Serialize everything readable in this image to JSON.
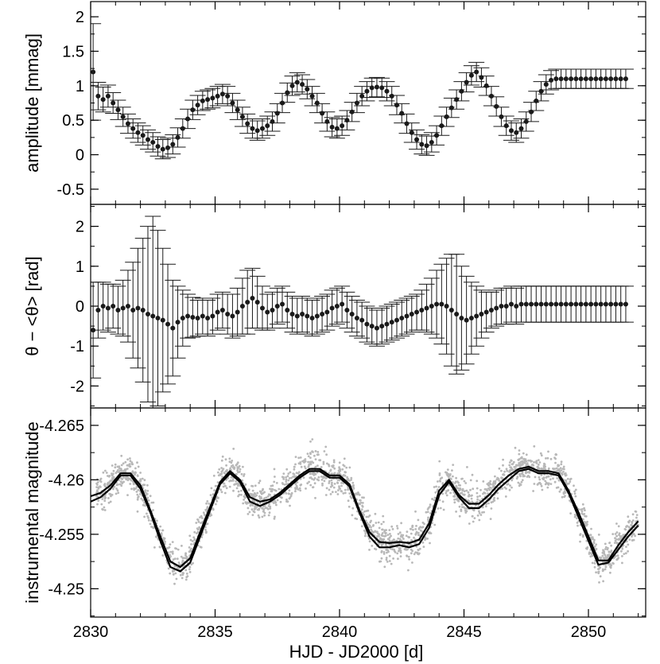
{
  "chart_data": [
    {
      "type": "scatter",
      "panel": "top",
      "ylabel": "amplitude [mmag]",
      "xlim": [
        2830,
        2852.3
      ],
      "ylim": [
        -0.72,
        2.22
      ],
      "xticks": [
        2830,
        2835,
        2840,
        2845,
        2850
      ],
      "yticks": [
        -0.5,
        0,
        0.5,
        1,
        1.5,
        2
      ],
      "ytick_labels": [
        "-0.5",
        "0",
        "0.5",
        "1",
        "1.5",
        "2"
      ],
      "error_bars": true,
      "grid": false,
      "series": [
        {
          "style": "points-with-errorbars",
          "color": "#1a1a1a",
          "x": [
            2830.1,
            2830.3,
            2830.5,
            2830.7,
            2830.9,
            2831.1,
            2831.3,
            2831.5,
            2831.7,
            2831.9,
            2832.1,
            2832.3,
            2832.5,
            2832.7,
            2832.9,
            2833.1,
            2833.3,
            2833.5,
            2833.7,
            2833.9,
            2834.1,
            2834.3,
            2834.5,
            2834.7,
            2834.9,
            2835.1,
            2835.3,
            2835.5,
            2835.7,
            2835.9,
            2836.1,
            2836.3,
            2836.5,
            2836.7,
            2836.9,
            2837.1,
            2837.3,
            2837.5,
            2837.7,
            2837.9,
            2838.1,
            2838.3,
            2838.5,
            2838.7,
            2838.9,
            2839.1,
            2839.3,
            2839.5,
            2839.7,
            2839.9,
            2840.1,
            2840.3,
            2840.5,
            2840.7,
            2840.9,
            2841.1,
            2841.3,
            2841.5,
            2841.7,
            2841.9,
            2842.1,
            2842.3,
            2842.5,
            2842.7,
            2842.9,
            2843.1,
            2843.3,
            2843.5,
            2843.7,
            2843.9,
            2844.1,
            2844.3,
            2844.5,
            2844.7,
            2844.9,
            2845.1,
            2845.3,
            2845.5,
            2845.7,
            2845.9,
            2846.1,
            2846.3,
            2846.5,
            2846.7,
            2846.9,
            2847.1,
            2847.3,
            2847.5,
            2847.7,
            2847.9,
            2848.1,
            2848.3,
            2848.5,
            2848.7,
            2848.9,
            2849.1,
            2849.3,
            2849.5,
            2849.7,
            2849.9,
            2850.1,
            2850.3,
            2850.5,
            2850.7,
            2850.9,
            2851.1,
            2851.3,
            2851.5
          ],
          "y": [
            1.2,
            0.85,
            0.8,
            0.85,
            0.75,
            0.65,
            0.55,
            0.45,
            0.38,
            0.32,
            0.28,
            0.22,
            0.18,
            0.12,
            0.08,
            0.1,
            0.15,
            0.25,
            0.38,
            0.52,
            0.65,
            0.72,
            0.78,
            0.8,
            0.82,
            0.85,
            0.88,
            0.85,
            0.75,
            0.65,
            0.55,
            0.45,
            0.38,
            0.35,
            0.38,
            0.42,
            0.48,
            0.6,
            0.75,
            0.9,
            1.0,
            1.05,
            1.02,
            0.95,
            0.85,
            0.75,
            0.6,
            0.48,
            0.4,
            0.38,
            0.42,
            0.5,
            0.62,
            0.75,
            0.85,
            0.92,
            0.97,
            0.98,
            0.97,
            0.92,
            0.85,
            0.72,
            0.6,
            0.45,
            0.32,
            0.22,
            0.15,
            0.13,
            0.18,
            0.28,
            0.42,
            0.55,
            0.68,
            0.8,
            0.92,
            1.05,
            1.15,
            1.2,
            1.12,
            1.0,
            0.85,
            0.7,
            0.55,
            0.42,
            0.35,
            0.32,
            0.38,
            0.48,
            0.62,
            0.78,
            0.92,
            1.02,
            1.08,
            1.1,
            1.1,
            1.1,
            1.1,
            1.1,
            1.1,
            1.1,
            1.1,
            1.1,
            1.1,
            1.1,
            1.1,
            1.1,
            1.1,
            1.1
          ],
          "err": [
            0.7,
            0.2,
            0.18,
            0.16,
            0.15,
            0.14,
            0.14,
            0.14,
            0.14,
            0.14,
            0.14,
            0.14,
            0.14,
            0.14,
            0.14,
            0.14,
            0.14,
            0.14,
            0.14,
            0.14,
            0.14,
            0.14,
            0.14,
            0.14,
            0.14,
            0.14,
            0.14,
            0.14,
            0.14,
            0.14,
            0.14,
            0.14,
            0.14,
            0.14,
            0.14,
            0.14,
            0.14,
            0.14,
            0.14,
            0.14,
            0.14,
            0.14,
            0.14,
            0.14,
            0.14,
            0.14,
            0.14,
            0.14,
            0.14,
            0.14,
            0.14,
            0.14,
            0.14,
            0.14,
            0.14,
            0.14,
            0.14,
            0.14,
            0.14,
            0.14,
            0.14,
            0.14,
            0.14,
            0.14,
            0.14,
            0.14,
            0.14,
            0.14,
            0.14,
            0.14,
            0.14,
            0.14,
            0.14,
            0.14,
            0.14,
            0.14,
            0.14,
            0.14,
            0.14,
            0.14,
            0.14,
            0.14,
            0.14,
            0.14,
            0.14,
            0.14,
            0.14,
            0.14,
            0.14,
            0.14,
            0.14,
            0.14,
            0.14,
            0.14,
            0.14,
            0.14,
            0.14,
            0.14,
            0.14,
            0.14,
            0.14,
            0.14,
            0.14,
            0.14,
            0.14,
            0.14,
            0.14,
            0.14
          ]
        }
      ]
    },
    {
      "type": "scatter",
      "panel": "middle",
      "ylabel": "θ − <θ> [rad]",
      "xlim": [
        2830,
        2852.3
      ],
      "ylim": [
        -2.55,
        2.55
      ],
      "xticks": [
        2830,
        2835,
        2840,
        2845,
        2850
      ],
      "yticks": [
        -2,
        -1,
        0,
        1,
        2
      ],
      "ytick_labels": [
        "-2",
        "-1",
        "0",
        "1",
        "2"
      ],
      "error_bars": true,
      "grid": false,
      "series": [
        {
          "style": "points-with-errorbars",
          "color": "#1a1a1a",
          "x": [
            2830.1,
            2830.3,
            2830.5,
            2830.7,
            2830.9,
            2831.1,
            2831.3,
            2831.5,
            2831.7,
            2831.9,
            2832.1,
            2832.3,
            2832.5,
            2832.7,
            2832.9,
            2833.1,
            2833.3,
            2833.5,
            2833.7,
            2833.9,
            2834.1,
            2834.3,
            2834.5,
            2834.7,
            2834.9,
            2835.1,
            2835.3,
            2835.5,
            2835.7,
            2835.9,
            2836.1,
            2836.3,
            2836.5,
            2836.7,
            2836.9,
            2837.1,
            2837.3,
            2837.5,
            2837.7,
            2837.9,
            2838.1,
            2838.3,
            2838.5,
            2838.7,
            2838.9,
            2839.1,
            2839.3,
            2839.5,
            2839.7,
            2839.9,
            2840.1,
            2840.3,
            2840.5,
            2840.7,
            2840.9,
            2841.1,
            2841.3,
            2841.5,
            2841.7,
            2841.9,
            2842.1,
            2842.3,
            2842.5,
            2842.7,
            2842.9,
            2843.1,
            2843.3,
            2843.5,
            2843.7,
            2843.9,
            2844.1,
            2844.3,
            2844.5,
            2844.7,
            2844.9,
            2845.1,
            2845.3,
            2845.5,
            2845.7,
            2845.9,
            2846.1,
            2846.3,
            2846.5,
            2846.7,
            2846.9,
            2847.1,
            2847.3,
            2847.5,
            2847.7,
            2847.9,
            2848.1,
            2848.3,
            2848.5,
            2848.7,
            2848.9,
            2849.1,
            2849.3,
            2849.5,
            2849.7,
            2849.9,
            2850.1,
            2850.3,
            2850.5,
            2850.7,
            2850.9,
            2851.1,
            2851.3,
            2851.5
          ],
          "y": [
            -0.6,
            -0.1,
            0.0,
            -0.05,
            0.0,
            -0.1,
            -0.05,
            0.0,
            -0.1,
            -0.05,
            -0.1,
            -0.2,
            -0.25,
            -0.3,
            -0.35,
            -0.45,
            -0.55,
            -0.4,
            -0.3,
            -0.25,
            -0.28,
            -0.3,
            -0.25,
            -0.3,
            -0.25,
            -0.15,
            -0.1,
            -0.2,
            -0.25,
            -0.15,
            0.0,
            0.1,
            0.2,
            0.1,
            -0.05,
            -0.15,
            -0.1,
            0.0,
            0.05,
            -0.1,
            -0.2,
            -0.25,
            -0.2,
            -0.25,
            -0.3,
            -0.25,
            -0.2,
            -0.15,
            -0.05,
            0.0,
            0.05,
            -0.1,
            -0.2,
            -0.3,
            -0.35,
            -0.45,
            -0.5,
            -0.55,
            -0.5,
            -0.45,
            -0.4,
            -0.35,
            -0.3,
            -0.25,
            -0.2,
            -0.15,
            -0.1,
            -0.05,
            0.0,
            0.05,
            0.05,
            0.0,
            -0.1,
            -0.2,
            -0.3,
            -0.35,
            -0.3,
            -0.25,
            -0.2,
            -0.15,
            -0.1,
            -0.05,
            0.0,
            0.0,
            0.05,
            0.0,
            0.05,
            0.05,
            0.05,
            0.05,
            0.05,
            0.05,
            0.05,
            0.05,
            0.05,
            0.05,
            0.05,
            0.05,
            0.05,
            0.05,
            0.05,
            0.05,
            0.05,
            0.05,
            0.05,
            0.05,
            0.05,
            0.05
          ],
          "err": [
            1.2,
            0.7,
            0.6,
            0.6,
            0.55,
            0.6,
            0.7,
            0.9,
            1.2,
            1.5,
            1.8,
            2.2,
            2.5,
            2.2,
            1.8,
            1.5,
            1.2,
            0.9,
            0.7,
            0.55,
            0.5,
            0.45,
            0.45,
            0.45,
            0.45,
            0.45,
            0.45,
            0.5,
            0.55,
            0.6,
            0.7,
            0.8,
            0.75,
            0.65,
            0.55,
            0.45,
            0.45,
            0.45,
            0.45,
            0.45,
            0.45,
            0.45,
            0.45,
            0.45,
            0.45,
            0.45,
            0.45,
            0.45,
            0.45,
            0.45,
            0.45,
            0.45,
            0.45,
            0.45,
            0.45,
            0.45,
            0.45,
            0.45,
            0.45,
            0.45,
            0.45,
            0.45,
            0.45,
            0.45,
            0.45,
            0.45,
            0.5,
            0.6,
            0.7,
            0.85,
            1.0,
            1.2,
            1.4,
            1.5,
            1.3,
            1.1,
            0.9,
            0.75,
            0.6,
            0.5,
            0.45,
            0.45,
            0.45,
            0.45,
            0.45,
            0.45,
            0.45,
            0.45,
            0.45,
            0.45,
            0.45,
            0.45,
            0.45,
            0.45,
            0.45,
            0.45,
            0.45,
            0.45,
            0.45,
            0.45,
            0.45,
            0.45,
            0.45,
            0.45,
            0.45,
            0.45,
            0.45,
            0.45
          ]
        }
      ]
    },
    {
      "type": "scatter",
      "panel": "bottom",
      "xlabel": "HJD - JD2000 [d]",
      "ylabel": "instrumental magnitude",
      "xlim": [
        2830,
        2852.3
      ],
      "ylim": [
        -4.2666,
        -4.2474
      ],
      "y_inverted": true,
      "xticks": [
        2830,
        2835,
        2840,
        2845,
        2850
      ],
      "xtick_labels": [
        "2830",
        "2835",
        "2840",
        "2845",
        "2850"
      ],
      "yticks": [
        -4.265,
        -4.26,
        -4.255,
        -4.25
      ],
      "ytick_labels": [
        "-4.265",
        "-4.26",
        "-4.255",
        "-4.25"
      ],
      "grid": false,
      "scatter_color": "#b8b8b8",
      "scatter_note": "dense photometric points scattered around the model curves",
      "scatter_sd": 0.0008,
      "series": [
        {
          "style": "line",
          "color": "#000000",
          "x": [
            2830,
            2830.4,
            2830.8,
            2831.2,
            2831.6,
            2832.0,
            2832.4,
            2832.8,
            2833.2,
            2833.6,
            2834.0,
            2834.4,
            2834.8,
            2835.2,
            2835.6,
            2836.0,
            2836.4,
            2836.8,
            2837.2,
            2837.6,
            2838.0,
            2838.4,
            2838.8,
            2839.2,
            2839.6,
            2840.0,
            2840.4,
            2840.8,
            2841.2,
            2841.6,
            2842.0,
            2842.4,
            2842.8,
            2843.2,
            2843.6,
            2844.0,
            2844.4,
            2844.8,
            2845.2,
            2845.6,
            2846.0,
            2846.4,
            2846.8,
            2847.2,
            2847.6,
            2848.0,
            2848.4,
            2848.8,
            2849.2,
            2849.6,
            2850.0,
            2850.4,
            2850.8,
            2851.2,
            2851.6,
            2852.0
          ],
          "y": [
            -4.2585,
            -4.2588,
            -4.2595,
            -4.2606,
            -4.2606,
            -4.2595,
            -4.2572,
            -4.2548,
            -4.2525,
            -4.252,
            -4.2528,
            -4.2552,
            -4.2575,
            -4.2598,
            -4.2608,
            -4.26,
            -4.2584,
            -4.258,
            -4.2582,
            -4.2588,
            -4.2596,
            -4.2604,
            -4.261,
            -4.261,
            -4.2604,
            -4.2604,
            -4.2596,
            -4.2572,
            -4.2552,
            -4.2543,
            -4.2542,
            -4.2543,
            -4.2542,
            -4.2545,
            -4.256,
            -4.259,
            -4.26,
            -4.2586,
            -4.2578,
            -4.2578,
            -4.2586,
            -4.2596,
            -4.2604,
            -4.261,
            -4.2612,
            -4.2608,
            -4.2608,
            -4.2606,
            -4.259,
            -4.257,
            -4.2548,
            -4.2526,
            -4.2526,
            -4.254,
            -4.2552,
            -4.2562
          ]
        },
        {
          "style": "line",
          "color": "#000000",
          "x": [
            2830,
            2830.4,
            2830.8,
            2831.2,
            2831.6,
            2832.0,
            2832.4,
            2832.8,
            2833.2,
            2833.6,
            2834.0,
            2834.4,
            2834.8,
            2835.2,
            2835.6,
            2836.0,
            2836.4,
            2836.8,
            2837.2,
            2837.6,
            2838.0,
            2838.4,
            2838.8,
            2839.2,
            2839.6,
            2840.0,
            2840.4,
            2840.8,
            2841.2,
            2841.6,
            2842.0,
            2842.4,
            2842.8,
            2843.2,
            2843.6,
            2844.0,
            2844.4,
            2844.8,
            2845.2,
            2845.6,
            2846.0,
            2846.4,
            2846.8,
            2847.2,
            2847.6,
            2848.0,
            2848.4,
            2848.8,
            2849.2,
            2849.6,
            2850.0,
            2850.4,
            2850.8,
            2851.2,
            2851.6,
            2852.0
          ],
          "y": [
            -4.258,
            -4.2584,
            -4.2592,
            -4.2604,
            -4.2604,
            -4.2592,
            -4.257,
            -4.2544,
            -4.252,
            -4.2516,
            -4.2524,
            -4.2548,
            -4.2572,
            -4.2596,
            -4.2606,
            -4.2598,
            -4.258,
            -4.2576,
            -4.258,
            -4.2586,
            -4.2594,
            -4.2602,
            -4.2608,
            -4.2608,
            -4.2602,
            -4.2602,
            -4.2594,
            -4.257,
            -4.2548,
            -4.2538,
            -4.2538,
            -4.254,
            -4.2538,
            -4.2541,
            -4.2556,
            -4.2586,
            -4.2598,
            -4.2584,
            -4.2574,
            -4.2574,
            -4.2582,
            -4.2592,
            -4.26,
            -4.2608,
            -4.261,
            -4.2606,
            -4.2606,
            -4.2604,
            -4.2588,
            -4.2566,
            -4.2544,
            -4.2522,
            -4.2524,
            -4.2536,
            -4.2548,
            -4.2558
          ]
        }
      ]
    }
  ]
}
